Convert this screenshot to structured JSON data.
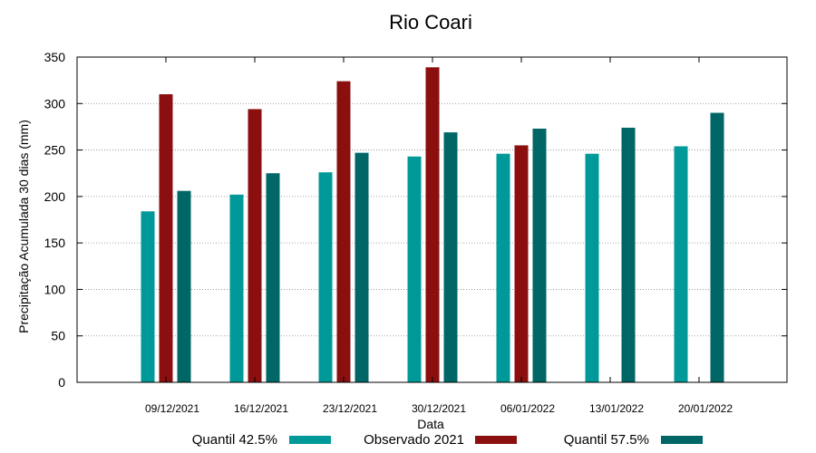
{
  "chart_data": {
    "type": "bar",
    "title": "Rio Coari",
    "xlabel": "Data",
    "ylabel": "Precipitação Acumulada 30 dias (mm)",
    "ylim": [
      0,
      350
    ],
    "yticks": [
      0,
      50,
      100,
      150,
      200,
      250,
      300,
      350
    ],
    "grid": true,
    "legend_position": "bottom",
    "categories": [
      "09/12/2021",
      "16/12/2021",
      "23/12/2021",
      "30/12/2021",
      "06/01/2022",
      "13/01/2022",
      "20/01/2022"
    ],
    "series": [
      {
        "name": "Quantil 42.5%",
        "color": "#009999",
        "values": [
          184,
          202,
          226,
          243,
          246,
          246,
          254
        ]
      },
      {
        "name": "Observado 2021",
        "color": "#8b0f0f",
        "values": [
          310,
          294,
          324,
          339,
          255,
          null,
          null
        ]
      },
      {
        "name": "Quantil 57.5%",
        "color": "#006666",
        "values": [
          206,
          225,
          247,
          269,
          273,
          274,
          290
        ]
      }
    ]
  }
}
